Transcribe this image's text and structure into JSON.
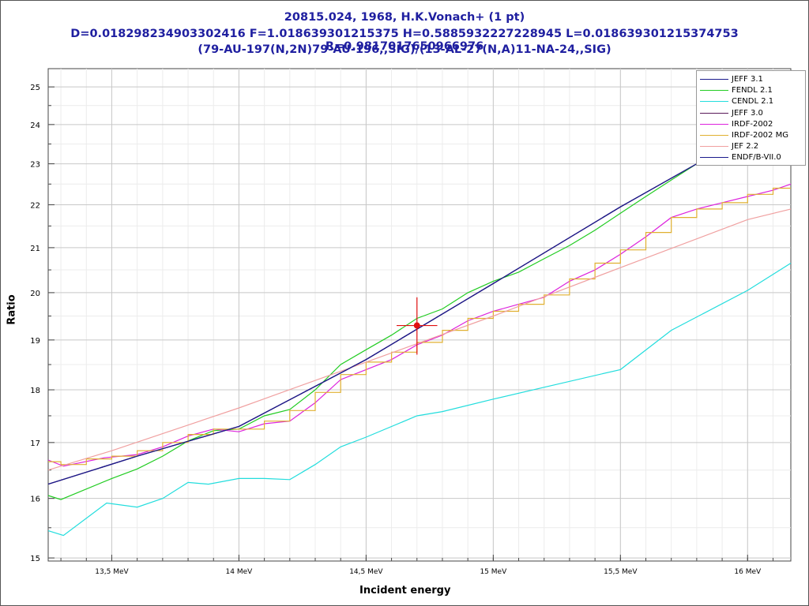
{
  "chart_data": {
    "type": "line",
    "title": "20815.024, 1968, H.K.Vonach+ (1 pt)",
    "subtitle": "D=0.018298234903302416 F=1.018639301215375 H=0.5885932227228945 L=0.018639301215374753 R=0.9817017650966976",
    "reaction": "(79-AU-197(N,2N)79-AU-196,,SIG)/(13-AL-27(N,A)11-NA-24,,SIG)",
    "xlabel": "Incident energy",
    "ylabel": "Ratio",
    "xlim": [
      13.25,
      16.17
    ],
    "ylim": [
      14.95,
      25.5
    ],
    "yscale": "log",
    "grid": true,
    "legend_position": "top-right",
    "x_ticks": [
      {
        "value": 13.5,
        "label": "13,5 MeV"
      },
      {
        "value": 14.0,
        "label": "14 MeV"
      },
      {
        "value": 14.5,
        "label": "14,5 MeV"
      },
      {
        "value": 15.0,
        "label": "15 MeV"
      },
      {
        "value": 15.5,
        "label": "15,5 MeV"
      },
      {
        "value": 16.0,
        "label": "16 MeV"
      }
    ],
    "y_ticks": [
      15,
      16,
      17,
      18,
      19,
      20,
      21,
      22,
      23,
      24,
      25
    ],
    "series": [
      {
        "name": "JEFF 3.1",
        "color": "#1a1a8c",
        "style": "line",
        "x": [
          13.25,
          13.6,
          14.0,
          14.5,
          15.0,
          15.5,
          15.8
        ],
        "y": [
          16.25,
          16.75,
          17.3,
          18.6,
          20.2,
          21.95,
          23.0
        ]
      },
      {
        "name": "FENDL 2.1",
        "color": "#22cc22",
        "style": "line",
        "x": [
          13.25,
          13.3,
          13.5,
          13.6,
          13.7,
          13.8,
          13.9,
          14.0,
          14.1,
          14.2,
          14.3,
          14.4,
          14.5,
          14.6,
          14.7,
          14.8,
          14.9,
          15.0,
          15.1,
          15.2,
          15.3,
          15.4,
          15.5,
          15.6,
          15.7,
          15.8
        ],
        "y": [
          16.05,
          15.98,
          16.35,
          16.52,
          16.75,
          17.03,
          17.22,
          17.25,
          17.5,
          17.62,
          18.0,
          18.5,
          18.8,
          19.1,
          19.45,
          19.65,
          20.0,
          20.25,
          20.45,
          20.75,
          21.05,
          21.4,
          21.8,
          22.2,
          22.6,
          23.0
        ]
      },
      {
        "name": "CENDL 2.1",
        "color": "#22dddd",
        "style": "line",
        "x": [
          13.25,
          13.31,
          13.48,
          13.6,
          13.7,
          13.8,
          13.88,
          14.0,
          14.1,
          14.2,
          14.3,
          14.4,
          14.5,
          14.7,
          14.8,
          15.0,
          15.2,
          15.5,
          15.7,
          16.0,
          16.17
        ],
        "y": [
          15.45,
          15.37,
          15.92,
          15.85,
          16.0,
          16.28,
          16.25,
          16.35,
          16.35,
          16.33,
          16.6,
          16.92,
          17.1,
          17.5,
          17.58,
          17.82,
          18.05,
          18.4,
          19.2,
          20.05,
          20.65
        ]
      },
      {
        "name": "JEFF 3.0",
        "color": "#5a1a5a",
        "style": "line",
        "x": [
          13.25,
          13.6,
          14.0,
          14.5,
          15.0,
          15.5,
          15.8
        ],
        "y": [
          16.25,
          16.75,
          17.3,
          18.6,
          20.2,
          21.95,
          23.0
        ]
      },
      {
        "name": "IRDF-2002",
        "color": "#dd22dd",
        "style": "line",
        "x": [
          13.25,
          13.31,
          13.47,
          13.6,
          13.7,
          13.8,
          13.9,
          14.0,
          14.1,
          14.2,
          14.3,
          14.4,
          14.5,
          14.6,
          14.7,
          14.8,
          14.9,
          15.0,
          15.1,
          15.2,
          15.3,
          15.4,
          15.5,
          15.6,
          15.7,
          15.8,
          15.9,
          16.0,
          16.1,
          16.17
        ],
        "y": [
          16.68,
          16.57,
          16.72,
          16.78,
          16.92,
          17.12,
          17.25,
          17.2,
          17.35,
          17.4,
          17.75,
          18.2,
          18.4,
          18.6,
          18.9,
          19.1,
          19.4,
          19.6,
          19.75,
          19.9,
          20.25,
          20.5,
          20.85,
          21.25,
          21.7,
          21.9,
          22.05,
          22.2,
          22.35,
          22.5
        ]
      },
      {
        "name": "IRDF-2002 MG",
        "color": "#e0b030",
        "style": "step",
        "edges": [
          13.25,
          13.3,
          13.4,
          13.5,
          13.6,
          13.7,
          13.8,
          13.9,
          14.0,
          14.1,
          14.2,
          14.3,
          14.4,
          14.5,
          14.6,
          14.7,
          14.8,
          14.9,
          15.0,
          15.1,
          15.2,
          15.3,
          15.4,
          15.5,
          15.6,
          15.7,
          15.8,
          15.9,
          16.0,
          16.1,
          16.17
        ],
        "y": [
          16.65,
          16.6,
          16.7,
          16.75,
          16.85,
          17.0,
          17.15,
          17.25,
          17.25,
          17.4,
          17.6,
          17.95,
          18.3,
          18.55,
          18.75,
          18.95,
          19.2,
          19.45,
          19.6,
          19.75,
          19.95,
          20.3,
          20.65,
          20.95,
          21.35,
          21.7,
          21.9,
          22.05,
          22.25,
          22.4
        ]
      },
      {
        "name": "JEF 2.2",
        "color": "#f0a0a0",
        "style": "line",
        "x": [
          13.25,
          13.5,
          14.0,
          14.5,
          15.0,
          15.5,
          16.0,
          16.17
        ],
        "y": [
          16.5,
          16.85,
          17.65,
          18.55,
          19.5,
          20.55,
          21.65,
          21.9
        ]
      },
      {
        "name": "ENDF/B-VII.0",
        "color": "#1a1a8c",
        "style": "line",
        "x": [
          13.25,
          13.6,
          14.0,
          14.5,
          15.0,
          15.5,
          15.8
        ],
        "y": [
          16.25,
          16.75,
          17.3,
          18.6,
          20.2,
          21.95,
          23.0
        ]
      }
    ],
    "experiment": {
      "x": 14.7,
      "y": 19.3,
      "x_err": 0.08,
      "y_err": 0.6,
      "color": "#e01010"
    }
  }
}
